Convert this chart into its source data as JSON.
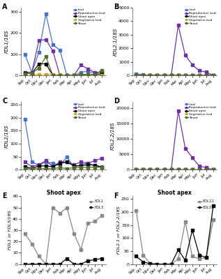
{
  "months": [
    "Sep",
    "Oct",
    "Nov",
    "Dec",
    "Jan",
    "Feb",
    "Mar",
    "Apr",
    "May",
    "Jun",
    "Jul",
    "Aug"
  ],
  "panel_A": {
    "ylabel": "FDL1/18S",
    "ylim": [
      0,
      320
    ],
    "yticks": [
      0,
      100,
      200,
      300
    ],
    "leaf": [
      100,
      15,
      110,
      290,
      145,
      120,
      0,
      0,
      15,
      20,
      10,
      20
    ],
    "repro_bud": [
      15,
      15,
      165,
      170,
      115,
      0,
      0,
      0,
      50,
      30,
      15,
      15
    ],
    "shoot_apex": [
      12,
      8,
      55,
      55,
      0,
      0,
      0,
      0,
      0,
      5,
      5,
      8
    ],
    "veg_bud": [
      2,
      2,
      5,
      5,
      5,
      3,
      2,
      2,
      2,
      2,
      2,
      2
    ],
    "shoot": [
      8,
      10,
      35,
      88,
      0,
      0,
      0,
      0,
      5,
      5,
      5,
      25
    ]
  },
  "panel_B": {
    "ylabel": "FDL2.1/18S",
    "ylim": [
      0,
      5000
    ],
    "yticks": [
      0,
      1000,
      2000,
      3000,
      4000,
      5000
    ],
    "leaf": [
      130,
      50,
      0,
      0,
      0,
      0,
      0,
      0,
      0,
      0,
      0,
      0
    ],
    "repro_bud": [
      0,
      0,
      0,
      0,
      0,
      0,
      3700,
      1500,
      800,
      350,
      250,
      0
    ],
    "shoot_apex": [
      0,
      0,
      0,
      0,
      0,
      0,
      5,
      0,
      0,
      0,
      0,
      0
    ],
    "veg_bud": [
      0,
      0,
      0,
      0,
      0,
      0,
      0,
      0,
      0,
      0,
      0,
      0
    ],
    "shoot": [
      0,
      0,
      0,
      0,
      0,
      0,
      0,
      0,
      0,
      0,
      0,
      0
    ]
  },
  "panel_C": {
    "ylabel": "FDL2/18S",
    "ylim": [
      0,
      260
    ],
    "yticks": [
      0,
      50,
      100,
      150,
      200,
      250
    ],
    "leaf": [
      193,
      30,
      18,
      30,
      25,
      15,
      50,
      10,
      20,
      25,
      15,
      12
    ],
    "repro_bud": [
      30,
      12,
      20,
      35,
      12,
      30,
      30,
      20,
      30,
      25,
      35,
      45
    ],
    "shoot_apex": [
      12,
      5,
      15,
      15,
      12,
      25,
      30,
      15,
      15,
      20,
      18,
      10
    ],
    "veg_bud": [
      2,
      2,
      2,
      2,
      2,
      2,
      2,
      2,
      2,
      2,
      2,
      2
    ],
    "shoot": [
      5,
      5,
      5,
      5,
      5,
      8,
      5,
      8,
      8,
      10,
      10,
      10
    ]
  },
  "panel_D": {
    "ylabel": "FDL2.2/18S",
    "ylim": [
      0,
      22000
    ],
    "yticks": [
      0,
      5000,
      10000,
      15000,
      20000
    ],
    "leaf": [
      0,
      0,
      0,
      0,
      0,
      0,
      0,
      0,
      0,
      0,
      0,
      0
    ],
    "repro_bud": [
      0,
      0,
      0,
      0,
      0,
      0,
      19000,
      7000,
      4000,
      1200,
      700,
      0
    ],
    "shoot_apex": [
      0,
      0,
      0,
      0,
      0,
      0,
      50,
      0,
      0,
      0,
      0,
      0
    ],
    "veg_bud": [
      0,
      0,
      0,
      0,
      0,
      0,
      0,
      0,
      0,
      0,
      0,
      0
    ],
    "shoot": [
      0,
      0,
      0,
      0,
      0,
      0,
      0,
      0,
      0,
      0,
      0,
      0
    ]
  },
  "panel_E": {
    "title": "Shoot apex",
    "ylabel": "FDL1 or FDL3/18S",
    "ylim": [
      0,
      60
    ],
    "yticks": [
      0,
      10,
      20,
      30,
      40,
      50,
      60
    ],
    "fdl1": [
      27,
      18,
      7,
      0,
      50,
      45,
      50,
      27,
      13,
      36,
      38,
      43
    ],
    "fdl3": [
      0,
      0,
      0,
      0,
      0,
      0,
      5,
      0,
      0,
      3,
      4,
      5
    ]
  },
  "panel_F": {
    "title": "Shoot apex",
    "ylabel": "FDL2.1 or FDL2.2/18S",
    "ylim": [
      0,
      260
    ],
    "yticks": [
      0,
      50,
      100,
      150,
      200,
      250
    ],
    "fdl21": [
      205,
      35,
      2,
      0,
      0,
      0,
      20,
      162,
      30,
      20,
      25,
      170
    ],
    "fdl22": [
      30,
      8,
      2,
      0,
      0,
      0,
      55,
      15,
      130,
      35,
      25,
      225
    ]
  },
  "colors": {
    "leaf": "#4472c4",
    "repro_bud": "#7030a0",
    "shoot_apex": "#000000",
    "veg_bud": "#c9a227",
    "shoot": "#556b2f",
    "fdl1_light": "#888888",
    "fdl3_dark": "#000000",
    "fdl21_light": "#888888",
    "fdl22_dark": "#000000"
  },
  "bg_color": "#ffffff"
}
